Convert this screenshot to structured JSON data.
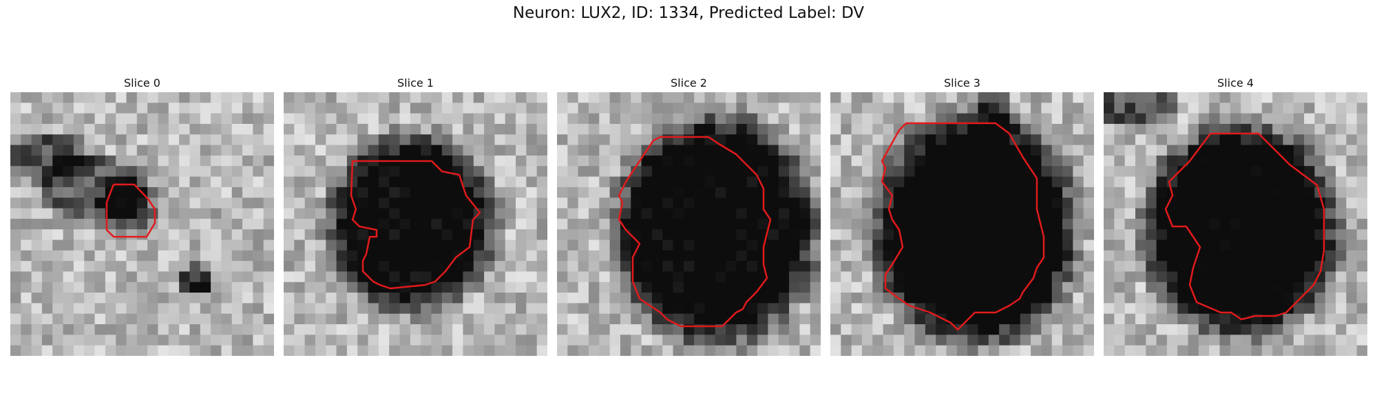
{
  "figure": {
    "title": "Neuron: LUX2, ID: 1334, Predicted Label: DV",
    "contour_color": "#e31a1c",
    "colormap": "grayscale",
    "slices": [
      {
        "title": "Slice 0"
      },
      {
        "title": "Slice 1"
      },
      {
        "title": "Slice 2"
      },
      {
        "title": "Slice 3"
      },
      {
        "title": "Slice 4"
      }
    ]
  }
}
